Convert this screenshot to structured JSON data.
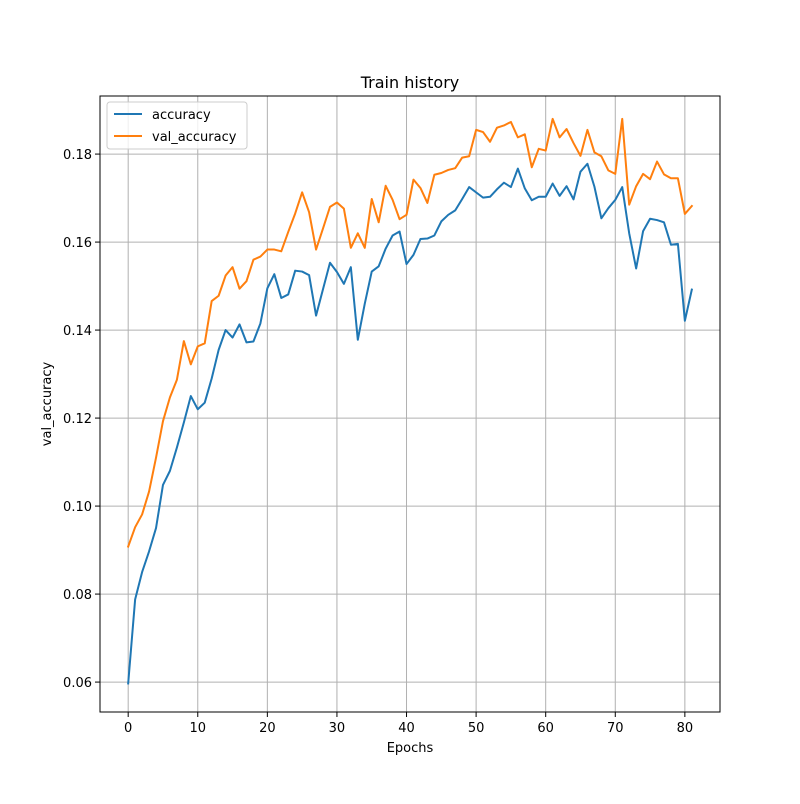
{
  "chart_data": {
    "type": "line",
    "title": "Train history",
    "xlabel": "Epochs",
    "ylabel": "val_accuracy",
    "xlim": [
      -4.05,
      85.05
    ],
    "ylim": [
      0.0532,
      0.1932
    ],
    "xticks": [
      0,
      10,
      20,
      30,
      40,
      50,
      60,
      70,
      80
    ],
    "yticks": [
      0.06,
      0.08,
      0.1,
      0.12,
      0.14,
      0.16,
      0.18
    ],
    "ytick_labels": [
      "0.06",
      "0.08",
      "0.10",
      "0.12",
      "0.14",
      "0.16",
      "0.18"
    ],
    "grid": true,
    "legend_position": "upper-left",
    "x": [
      0,
      1,
      2,
      3,
      4,
      5,
      6,
      7,
      8,
      9,
      10,
      11,
      12,
      13,
      14,
      15,
      16,
      17,
      18,
      19,
      20,
      21,
      22,
      23,
      24,
      25,
      26,
      27,
      28,
      29,
      30,
      31,
      32,
      33,
      34,
      35,
      36,
      37,
      38,
      39,
      40,
      41,
      42,
      43,
      44,
      45,
      46,
      47,
      48,
      49,
      50,
      51,
      52,
      53,
      54,
      55,
      56,
      57,
      58,
      59,
      60,
      61,
      62,
      63,
      64,
      65,
      66,
      67,
      68,
      69,
      70,
      71,
      72,
      73,
      74,
      75,
      76,
      77,
      78,
      79,
      80,
      81
    ],
    "series": [
      {
        "name": "accuracy",
        "color": "#1f77b4",
        "values": [
          0.0597,
          0.0788,
          0.085,
          0.0897,
          0.095,
          0.1048,
          0.108,
          0.1133,
          0.119,
          0.125,
          0.122,
          0.1235,
          0.129,
          0.1355,
          0.14,
          0.1383,
          0.1413,
          0.1372,
          0.1374,
          0.1415,
          0.1495,
          0.1527,
          0.1473,
          0.1481,
          0.1535,
          0.1533,
          0.1525,
          0.1433,
          0.1493,
          0.1553,
          0.1532,
          0.1505,
          0.1543,
          0.1378,
          0.146,
          0.1533,
          0.1545,
          0.1585,
          0.1615,
          0.1624,
          0.155,
          0.1571,
          0.1607,
          0.1608,
          0.1615,
          0.1647,
          0.1662,
          0.1672,
          0.1698,
          0.1725,
          0.1713,
          0.1701,
          0.1703,
          0.172,
          0.1735,
          0.1725,
          0.1767,
          0.1722,
          0.1695,
          0.1703,
          0.1703,
          0.1733,
          0.1705,
          0.1727,
          0.1697,
          0.176,
          0.1778,
          0.1726,
          0.1654,
          0.1677,
          0.1696,
          0.1725,
          0.162,
          0.154,
          0.1625,
          0.1653,
          0.165,
          0.1645,
          0.1594,
          0.1596,
          0.1421,
          0.1492
        ]
      },
      {
        "name": "val_accuracy",
        "color": "#ff7f0e",
        "values": [
          0.0908,
          0.0952,
          0.0981,
          0.1033,
          0.111,
          0.1193,
          0.1247,
          0.1287,
          0.1375,
          0.1322,
          0.1363,
          0.137,
          0.1466,
          0.1478,
          0.1524,
          0.1543,
          0.1494,
          0.1511,
          0.156,
          0.1567,
          0.1583,
          0.1583,
          0.1579,
          0.1623,
          0.1665,
          0.1713,
          0.1668,
          0.1583,
          0.1631,
          0.168,
          0.169,
          0.1676,
          0.1587,
          0.162,
          0.1587,
          0.1698,
          0.1645,
          0.1728,
          0.1696,
          0.1652,
          0.1662,
          0.1742,
          0.1723,
          0.1689,
          0.1753,
          0.1757,
          0.1764,
          0.1768,
          0.1792,
          0.1795,
          0.1855,
          0.185,
          0.1828,
          0.186,
          0.1865,
          0.1873,
          0.1838,
          0.1845,
          0.177,
          0.1812,
          0.1808,
          0.188,
          0.1838,
          0.1857,
          0.1825,
          0.1796,
          0.1855,
          0.1804,
          0.1795,
          0.1763,
          0.1755,
          0.188,
          0.1685,
          0.1727,
          0.1755,
          0.1743,
          0.1783,
          0.1754,
          0.1745,
          0.1745,
          0.1664,
          0.1682
        ]
      }
    ]
  }
}
